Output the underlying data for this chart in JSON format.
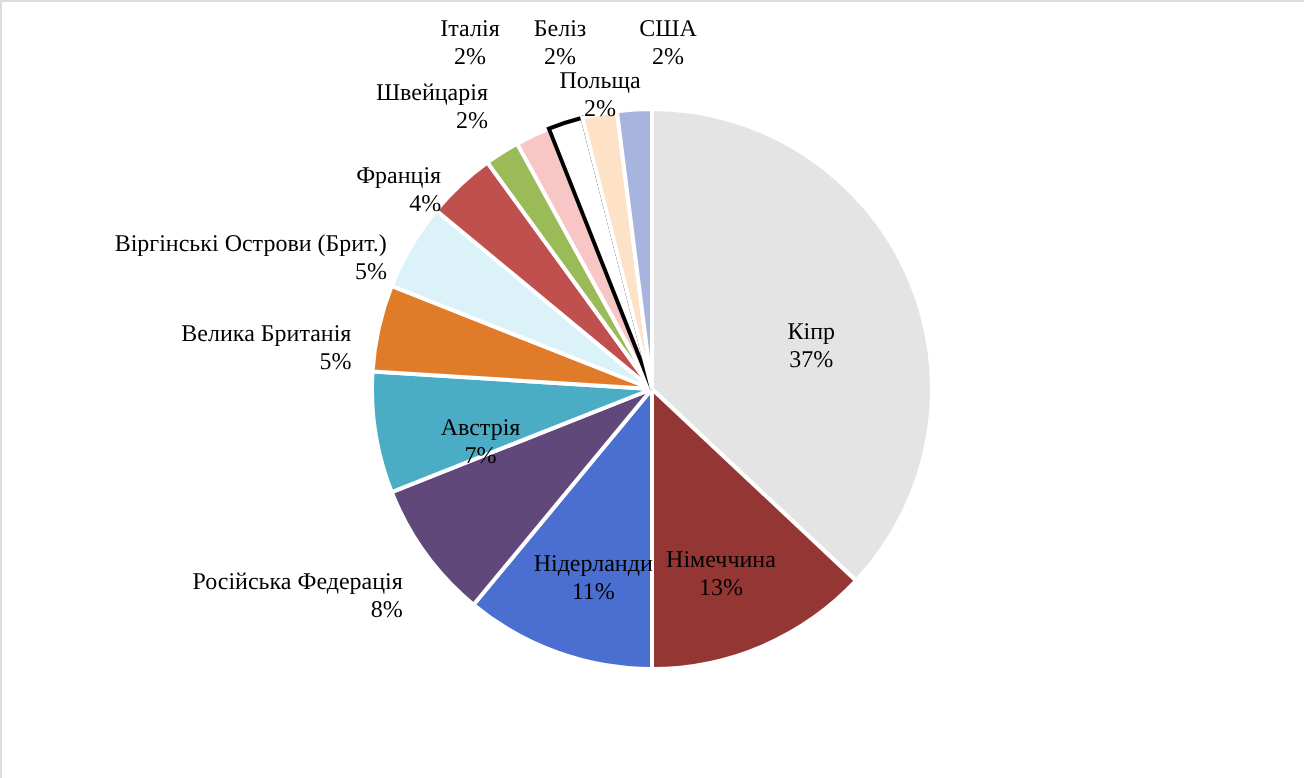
{
  "chart_data": {
    "type": "pie",
    "categories": [
      "Кіпр",
      "Німеччина",
      "Нідерланди",
      "Російська Федерація",
      "Австрія",
      "Велика Британія",
      "Віргінські Острови (Брит.)",
      "Франція",
      "Швейцарія",
      "Італія",
      "Беліз",
      "Польща",
      "США"
    ],
    "values": [
      37,
      13,
      11,
      8,
      7,
      5,
      5,
      4,
      2,
      2,
      2,
      2,
      2
    ],
    "value_labels": [
      "37%",
      "13%",
      "11%",
      "8%",
      "7%",
      "5%",
      "5%",
      "4%",
      "2%",
      "2%",
      "2%",
      "2%",
      "2%"
    ],
    "colors": [
      "#e4e4e4",
      "#943634",
      "#4a6fd1",
      "#60497a",
      "#4bacc6",
      "#e07b2a",
      "#dbf2f8",
      "#c0504d",
      "#9bbb59",
      "#f9c6c6",
      "#ffffff",
      "#fde2c8",
      "#a6b4de"
    ]
  }
}
